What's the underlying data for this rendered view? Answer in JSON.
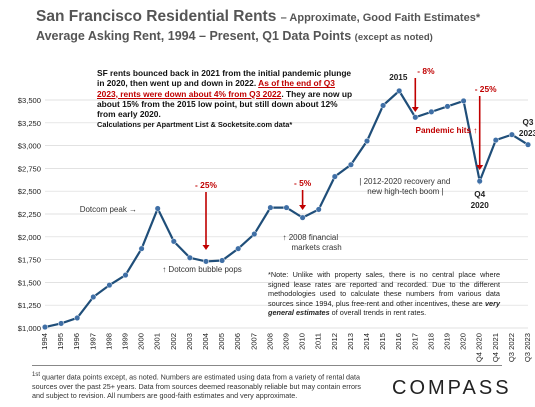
{
  "header": {
    "title": "San Francisco Residential Rents",
    "title_suffix": "– Approximate, Good Faith Estimates*",
    "subtitle": "Average Asking Rent, 1994 – Present, Q1 Data Points",
    "subtitle_suffix": "(except as noted)"
  },
  "summary_box": {
    "text1": "SF rents bounced back in 2021 from the initial pandemic plunge in 2020, then went up and down in 2022. ",
    "text_red": "As of the end of Q3 2023, rents were down about 4% from Q3 2022",
    "text2": ". They are now up about 15% from the 2015 low point, but still down about 12% from early 2020.",
    "text3": "Calculations per Apartment List & Socketsite.com data*"
  },
  "note": {
    "text1": "*Note: Unlike with property sales, there is no central place where signed lease rates are reported and recorded. Due to the different methodologies used to calculate these numbers from various data sources since 1994, plus free-rent and other incentives, these are ",
    "emph": "very general estimates",
    "text2": " of overall trends in rent rates."
  },
  "footer": {
    "sup": "1st",
    "text": " quarter data points except, as noted. Numbers are estimated using data from a variety of rental data sources over the past 25+ years. Data from sources deemed reasonably reliable but may contain errors and subject to revision. All numbers are good-faith estimates and very approximate."
  },
  "brand": {
    "logo": "COMPASS"
  },
  "colors": {
    "line": "#1f4e79",
    "point": "#3f6fa6",
    "red": "#c00000",
    "grid": "#d9d9d9"
  },
  "chart_data": {
    "type": "line",
    "title": "San Francisco Residential Rents",
    "categories": [
      "1994",
      "1995",
      "1996",
      "1997",
      "1998",
      "1999",
      "2000",
      "2001",
      "2002",
      "2003",
      "2004",
      "2005",
      "2006",
      "2007",
      "2008",
      "2009",
      "2010",
      "2011",
      "2012",
      "2013",
      "2014",
      "2015",
      "2016",
      "2017",
      "2018",
      "2019",
      "2020",
      "Q4 2020",
      "Q4 2021",
      "Q3 2022",
      "Q3 2023"
    ],
    "series": [
      {
        "values": [
          1010,
          1050,
          1110,
          1340,
          1470,
          1580,
          1870,
          2310,
          1950,
          1770,
          1730,
          1740,
          1870,
          2030,
          2320,
          2320,
          2210,
          2300,
          2660,
          2790,
          3050,
          3440,
          3600,
          3310,
          3370,
          3430,
          3490,
          2610,
          3060,
          3120,
          3010
        ]
      }
    ],
    "ylim": [
      1000,
      3500
    ],
    "yticks": [
      "$1,000",
      "$1,250",
      "$1,500",
      "$1,750",
      "$2,000",
      "$2,250",
      "$2,500",
      "$2,750",
      "$3,000",
      "$3,250",
      "$3,500"
    ],
    "grid": "horizontal",
    "annotations": [
      {
        "text": "Dotcom peak →",
        "at": "2001"
      },
      {
        "text": "- 25%",
        "at": "2004"
      },
      {
        "text": "↑ Dotcom bubble pops",
        "at": "2004"
      },
      {
        "text": "- 5%",
        "at": "2010"
      },
      {
        "text": "↑ 2008 financial",
        "at": "2009"
      },
      {
        "text": "markets crash",
        "at": "2009"
      },
      {
        "text": "| 2012-2020 recovery and",
        "at": "2017"
      },
      {
        "text": "new high-tech boom |",
        "at": "2017"
      },
      {
        "text": "2015",
        "at": "2016"
      },
      {
        "text": "- 8%",
        "at": "2017"
      },
      {
        "text": "Pandemic hits ↑",
        "at": "2019"
      },
      {
        "text": "- 25%",
        "at": "Q4 2020"
      },
      {
        "text": "Q4",
        "at": "Q4 2020"
      },
      {
        "text": "2020",
        "at": "Q4 2020"
      },
      {
        "text": "Q3",
        "at": "Q3 2023"
      },
      {
        "text": "2023",
        "at": "Q3 2023"
      }
    ]
  }
}
